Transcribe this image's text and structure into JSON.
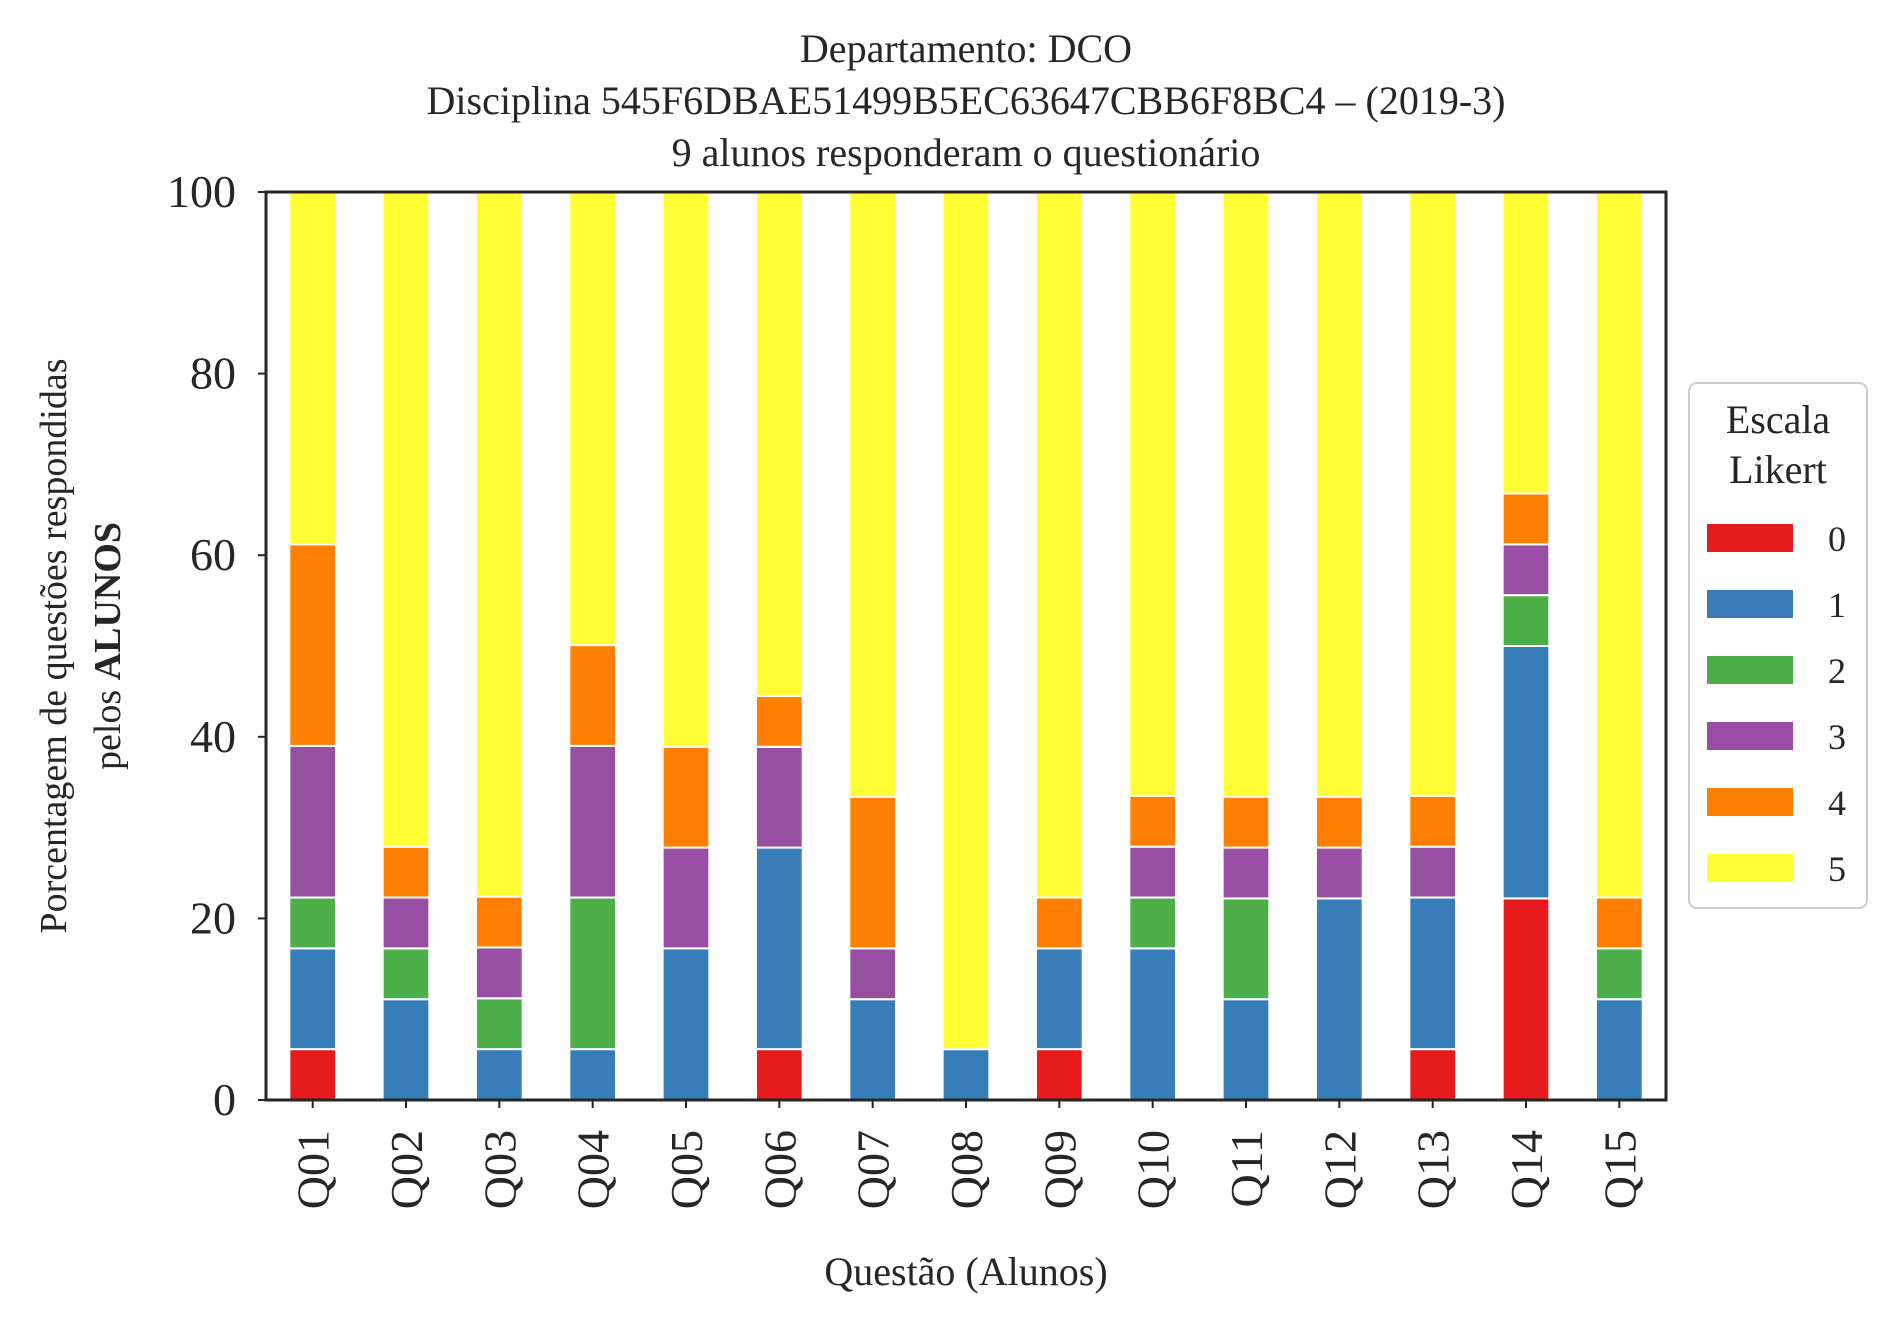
{
  "chart_data": {
    "type": "bar",
    "stacked": true,
    "title_lines": [
      "Departamento: DCO",
      "Disciplina 545F6DBAE51499B5EC63647CBB6F8BC4 – (2019-3)",
      "9 alunos responderam o questionário"
    ],
    "xlabel": "Questão (Alunos)",
    "ylabel_line1": "Porcentagem de questões respondidas",
    "ylabel_line2_prefix": "pelos ",
    "ylabel_line2_bold": "ALUNOS",
    "ylim": [
      0,
      100
    ],
    "yticks": [
      "0",
      "20",
      "40",
      "60",
      "80",
      "100"
    ],
    "categories": [
      "Q01",
      "Q02",
      "Q03",
      "Q04",
      "Q05",
      "Q06",
      "Q07",
      "Q08",
      "Q09",
      "Q10",
      "Q11",
      "Q12",
      "Q13",
      "Q14",
      "Q15"
    ],
    "legend": {
      "title_line1": "Escala",
      "title_line2": "Likert",
      "placement": "right"
    },
    "series": [
      {
        "name": "0",
        "color": "#e41a1c",
        "values": [
          5.6,
          0,
          0,
          0,
          0,
          5.6,
          0,
          0,
          5.6,
          0,
          0,
          0,
          5.6,
          22.2,
          0
        ]
      },
      {
        "name": "1",
        "color": "#377eb8",
        "values": [
          11.1,
          11.1,
          5.6,
          5.6,
          16.7,
          22.2,
          11.1,
          5.6,
          11.1,
          16.7,
          11.1,
          22.2,
          16.7,
          27.8,
          11.1
        ]
      },
      {
        "name": "2",
        "color": "#4daf4a",
        "values": [
          5.6,
          5.6,
          5.6,
          16.7,
          0,
          0,
          0,
          0,
          0,
          5.6,
          11.1,
          0,
          0,
          5.6,
          5.6
        ]
      },
      {
        "name": "3",
        "color": "#984ea3",
        "values": [
          16.7,
          5.6,
          5.6,
          16.7,
          11.1,
          11.1,
          5.6,
          0,
          0,
          5.6,
          5.6,
          5.6,
          5.6,
          5.6,
          0
        ]
      },
      {
        "name": "4",
        "color": "#ff7f00",
        "values": [
          22.2,
          5.6,
          5.6,
          11.1,
          11.1,
          5.6,
          16.7,
          0,
          5.6,
          5.6,
          5.6,
          5.6,
          5.6,
          5.6,
          5.6
        ]
      },
      {
        "name": "5",
        "color": "#ffff33",
        "values": [
          38.8,
          72.1,
          77.6,
          49.9,
          61.1,
          55.5,
          66.6,
          94.4,
          77.7,
          66.5,
          66.6,
          66.6,
          66.5,
          33.2,
          77.7
        ]
      }
    ]
  }
}
